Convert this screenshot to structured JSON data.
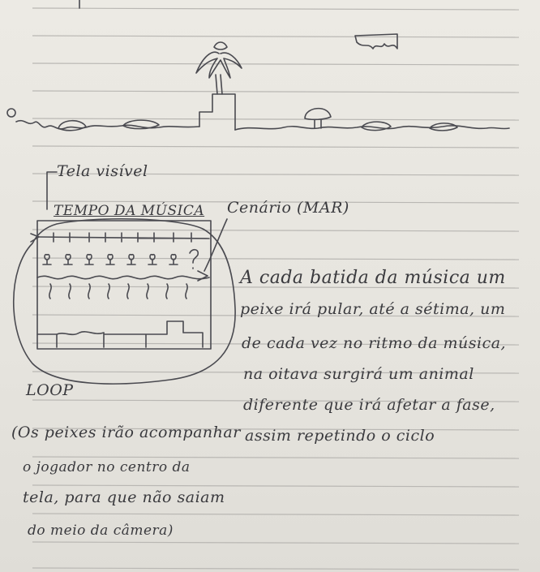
{
  "labels": {
    "visible_screen": "Tela visível",
    "music_tempo": "TEMPO DA MÚSICA",
    "scenery": "Cenário (MAR)",
    "loop": "LOOP"
  },
  "description_lines": [
    "A cada batida da música um",
    "peixe irá pular, até a sétima, um",
    "de cada vez no ritmo da música,",
    "na oitava surgirá um animal",
    "diferente que irá afetar a fase,",
    "assim repetindo o ciclo"
  ],
  "note_lines": [
    "(Os peixes irão acompanhar",
    "o jogador no centro da",
    "tela, para que não saiam",
    "do meio da câmera)"
  ]
}
